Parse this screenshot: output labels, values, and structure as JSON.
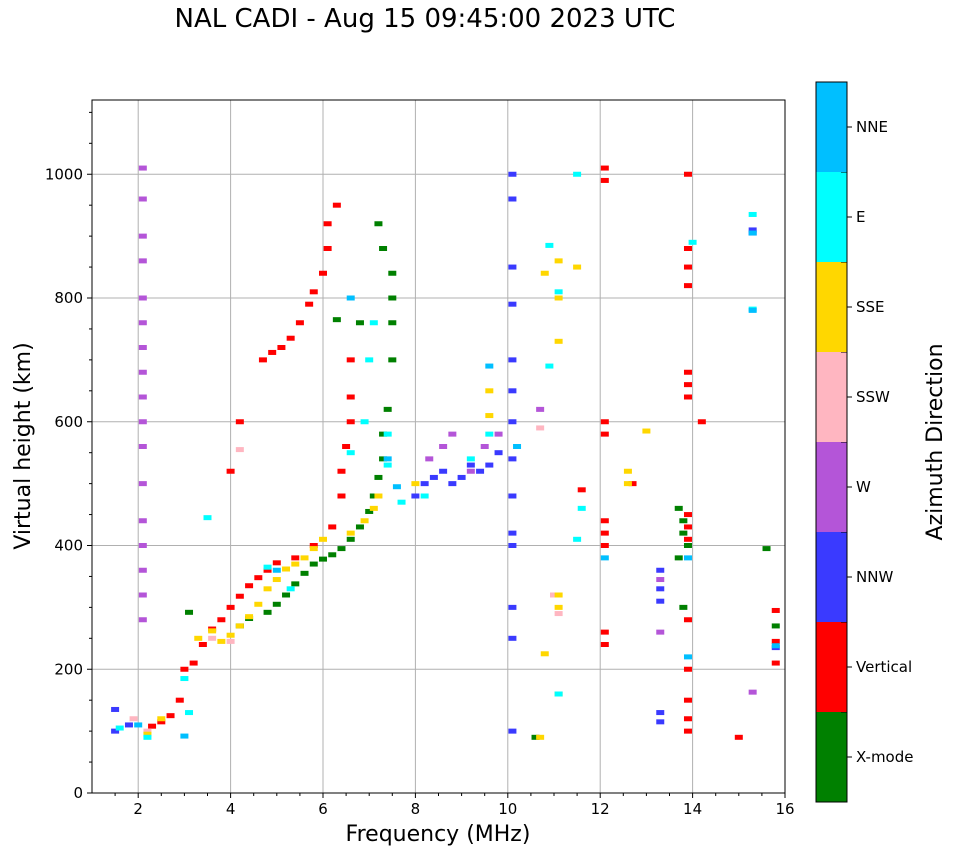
{
  "chart_data": {
    "type": "scatter",
    "title": "NAL CADI - Aug 15 09:45:00 2023 UTC",
    "xlabel": "Frequency (MHz)",
    "ylabel": "Virtual height (km)",
    "xlim": [
      1,
      16
    ],
    "ylim": [
      0,
      1120
    ],
    "xticks": [
      2,
      4,
      6,
      8,
      10,
      12,
      14,
      16
    ],
    "yticks": [
      0,
      200,
      400,
      600,
      800,
      1000
    ],
    "grid": true,
    "colorbar": {
      "label": "Azimuth Direction",
      "categories": [
        {
          "name": "X-mode",
          "color": "#008000"
        },
        {
          "name": "Vertical",
          "color": "#ff0000"
        },
        {
          "name": "NNW",
          "color": "#3a3aff"
        },
        {
          "name": "W",
          "color": "#b455d8"
        },
        {
          "name": "SSW",
          "color": "#ffb6c1"
        },
        {
          "name": "SSE",
          "color": "#ffd700"
        },
        {
          "name": "E",
          "color": "#00ffff"
        },
        {
          "name": "NNE",
          "color": "#00bfff"
        }
      ]
    },
    "series": [
      {
        "name": "X-mode",
        "points": [
          [
            3.1,
            292
          ],
          [
            4.2,
            270
          ],
          [
            4.4,
            282
          ],
          [
            4.8,
            292
          ],
          [
            5.0,
            305
          ],
          [
            5.2,
            320
          ],
          [
            5.4,
            338
          ],
          [
            5.6,
            355
          ],
          [
            5.8,
            370
          ],
          [
            6.0,
            378
          ],
          [
            6.2,
            385
          ],
          [
            6.4,
            395
          ],
          [
            6.6,
            410
          ],
          [
            6.8,
            430
          ],
          [
            7.0,
            455
          ],
          [
            7.1,
            480
          ],
          [
            7.2,
            510
          ],
          [
            7.3,
            540
          ],
          [
            7.3,
            580
          ],
          [
            7.4,
            620
          ],
          [
            6.3,
            765
          ],
          [
            6.8,
            760
          ],
          [
            7.5,
            760
          ],
          [
            7.5,
            800
          ],
          [
            7.5,
            840
          ],
          [
            7.3,
            880
          ],
          [
            7.2,
            920
          ],
          [
            7.5,
            700
          ],
          [
            13.7,
            460
          ],
          [
            13.8,
            440
          ],
          [
            13.8,
            420
          ],
          [
            13.9,
            400
          ],
          [
            13.7,
            380
          ],
          [
            13.8,
            300
          ],
          [
            15.8,
            270
          ],
          [
            15.6,
            395
          ],
          [
            10.6,
            90
          ]
        ]
      },
      {
        "name": "Vertical",
        "points": [
          [
            2.3,
            108
          ],
          [
            2.5,
            115
          ],
          [
            2.7,
            125
          ],
          [
            2.9,
            150
          ],
          [
            3.0,
            200
          ],
          [
            3.2,
            210
          ],
          [
            3.4,
            240
          ],
          [
            3.6,
            265
          ],
          [
            3.8,
            280
          ],
          [
            4.0,
            300
          ],
          [
            4.2,
            318
          ],
          [
            4.4,
            335
          ],
          [
            4.6,
            348
          ],
          [
            4.8,
            360
          ],
          [
            5.0,
            372
          ],
          [
            5.4,
            380
          ],
          [
            5.8,
            400
          ],
          [
            6.2,
            430
          ],
          [
            6.4,
            480
          ],
          [
            6.4,
            520
          ],
          [
            6.5,
            560
          ],
          [
            6.6,
            600
          ],
          [
            6.6,
            640
          ],
          [
            6.6,
            700
          ],
          [
            4.7,
            700
          ],
          [
            4.9,
            712
          ],
          [
            5.1,
            720
          ],
          [
            5.3,
            735
          ],
          [
            5.5,
            760
          ],
          [
            5.7,
            790
          ],
          [
            5.8,
            810
          ],
          [
            6.0,
            840
          ],
          [
            6.1,
            880
          ],
          [
            6.1,
            920
          ],
          [
            6.3,
            950
          ],
          [
            4.0,
            520
          ],
          [
            4.2,
            600
          ],
          [
            12.1,
            1010
          ],
          [
            12.1,
            990
          ],
          [
            12.1,
            600
          ],
          [
            12.1,
            580
          ],
          [
            12.1,
            440
          ],
          [
            12.1,
            420
          ],
          [
            12.1,
            400
          ],
          [
            12.1,
            260
          ],
          [
            12.1,
            240
          ],
          [
            13.9,
            1000
          ],
          [
            13.9,
            880
          ],
          [
            13.9,
            850
          ],
          [
            13.9,
            820
          ],
          [
            13.9,
            680
          ],
          [
            13.9,
            660
          ],
          [
            13.9,
            640
          ],
          [
            13.9,
            450
          ],
          [
            13.9,
            430
          ],
          [
            13.9,
            410
          ],
          [
            13.9,
            280
          ],
          [
            13.9,
            200
          ],
          [
            13.9,
            150
          ],
          [
            13.9,
            120
          ],
          [
            13.9,
            100
          ],
          [
            14.2,
            600
          ],
          [
            15.0,
            90
          ],
          [
            15.8,
            295
          ],
          [
            15.8,
            245
          ],
          [
            15.8,
            210
          ],
          [
            12.7,
            500
          ],
          [
            11.6,
            490
          ]
        ]
      },
      {
        "name": "NNW",
        "points": [
          [
            1.5,
            135
          ],
          [
            1.5,
            100
          ],
          [
            1.8,
            110
          ],
          [
            8.0,
            480
          ],
          [
            8.2,
            500
          ],
          [
            8.4,
            510
          ],
          [
            8.6,
            520
          ],
          [
            8.8,
            500
          ],
          [
            9.0,
            510
          ],
          [
            9.2,
            530
          ],
          [
            9.4,
            520
          ],
          [
            9.6,
            530
          ],
          [
            9.8,
            550
          ],
          [
            10.1,
            1000
          ],
          [
            10.1,
            960
          ],
          [
            10.1,
            850
          ],
          [
            10.1,
            790
          ],
          [
            10.1,
            700
          ],
          [
            10.1,
            650
          ],
          [
            10.1,
            600
          ],
          [
            10.1,
            540
          ],
          [
            10.1,
            480
          ],
          [
            10.1,
            420
          ],
          [
            10.1,
            400
          ],
          [
            10.1,
            300
          ],
          [
            10.1,
            250
          ],
          [
            10.1,
            100
          ],
          [
            13.3,
            360
          ],
          [
            13.3,
            330
          ],
          [
            13.3,
            310
          ],
          [
            13.3,
            130
          ],
          [
            13.3,
            115
          ],
          [
            15.3,
            910
          ],
          [
            15.3,
            905
          ],
          [
            15.8,
            235
          ]
        ]
      },
      {
        "name": "W",
        "points": [
          [
            2.1,
            1010
          ],
          [
            2.1,
            960
          ],
          [
            2.1,
            900
          ],
          [
            2.1,
            860
          ],
          [
            2.1,
            800
          ],
          [
            2.1,
            760
          ],
          [
            2.1,
            720
          ],
          [
            2.1,
            680
          ],
          [
            2.1,
            640
          ],
          [
            2.1,
            600
          ],
          [
            2.1,
            560
          ],
          [
            2.1,
            500
          ],
          [
            2.1,
            440
          ],
          [
            2.1,
            400
          ],
          [
            2.1,
            360
          ],
          [
            2.1,
            320
          ],
          [
            2.1,
            280
          ],
          [
            8.3,
            540
          ],
          [
            8.6,
            560
          ],
          [
            8.8,
            580
          ],
          [
            9.2,
            520
          ],
          [
            9.5,
            560
          ],
          [
            9.8,
            580
          ],
          [
            10.7,
            620
          ],
          [
            13.3,
            260
          ],
          [
            13.3,
            345
          ],
          [
            15.3,
            163
          ]
        ]
      },
      {
        "name": "SSW",
        "points": [
          [
            1.9,
            120
          ],
          [
            2.2,
            100
          ],
          [
            3.6,
            250
          ],
          [
            4.0,
            245
          ],
          [
            4.2,
            555
          ],
          [
            10.7,
            590
          ],
          [
            11.1,
            290
          ],
          [
            11.0,
            320
          ]
        ]
      },
      {
        "name": "SSE",
        "points": [
          [
            2.2,
            95
          ],
          [
            2.5,
            120
          ],
          [
            3.3,
            250
          ],
          [
            3.6,
            262
          ],
          [
            3.8,
            245
          ],
          [
            4.0,
            255
          ],
          [
            4.2,
            270
          ],
          [
            4.4,
            285
          ],
          [
            4.6,
            305
          ],
          [
            4.8,
            330
          ],
          [
            5.0,
            345
          ],
          [
            5.2,
            362
          ],
          [
            5.4,
            370
          ],
          [
            5.6,
            380
          ],
          [
            5.8,
            395
          ],
          [
            6.0,
            410
          ],
          [
            6.6,
            420
          ],
          [
            6.9,
            440
          ],
          [
            7.1,
            460
          ],
          [
            7.2,
            480
          ],
          [
            8.0,
            500
          ],
          [
            9.6,
            650
          ],
          [
            9.6,
            610
          ],
          [
            10.8,
            840
          ],
          [
            11.1,
            860
          ],
          [
            11.1,
            800
          ],
          [
            11.1,
            730
          ],
          [
            11.1,
            320
          ],
          [
            11.1,
            300
          ],
          [
            11.1,
            160
          ],
          [
            10.8,
            225
          ],
          [
            12.6,
            520
          ],
          [
            12.6,
            500
          ],
          [
            13.0,
            585
          ],
          [
            11.5,
            850
          ],
          [
            10.7,
            90
          ]
        ]
      },
      {
        "name": "E",
        "points": [
          [
            1.6,
            105
          ],
          [
            2.2,
            90
          ],
          [
            3.0,
            185
          ],
          [
            3.1,
            130
          ],
          [
            3.5,
            445
          ],
          [
            4.8,
            365
          ],
          [
            5.3,
            330
          ],
          [
            6.6,
            550
          ],
          [
            6.9,
            600
          ],
          [
            7.0,
            700
          ],
          [
            7.1,
            760
          ],
          [
            7.4,
            580
          ],
          [
            7.4,
            530
          ],
          [
            7.7,
            470
          ],
          [
            8.2,
            480
          ],
          [
            9.2,
            540
          ],
          [
            9.6,
            580
          ],
          [
            10.9,
            690
          ],
          [
            10.9,
            885
          ],
          [
            11.5,
            1000
          ],
          [
            11.6,
            460
          ],
          [
            11.5,
            410
          ],
          [
            11.1,
            810
          ],
          [
            11.1,
            160
          ],
          [
            15.3,
            935
          ],
          [
            15.3,
            782
          ],
          [
            14.0,
            890
          ]
        ]
      },
      {
        "name": "NNE",
        "points": [
          [
            2.0,
            110
          ],
          [
            3.0,
            92
          ],
          [
            5.0,
            360
          ],
          [
            6.6,
            800
          ],
          [
            7.4,
            540
          ],
          [
            7.6,
            495
          ],
          [
            9.6,
            690
          ],
          [
            10.2,
            560
          ],
          [
            15.3,
            905
          ],
          [
            15.3,
            780
          ],
          [
            12.1,
            380
          ],
          [
            13.9,
            380
          ],
          [
            13.9,
            220
          ],
          [
            15.8,
            238
          ]
        ]
      }
    ]
  }
}
